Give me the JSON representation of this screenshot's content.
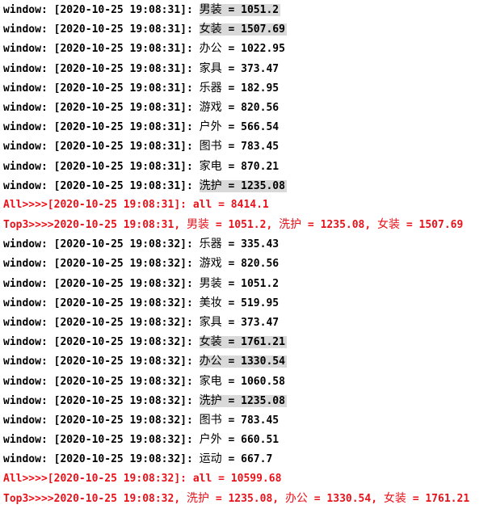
{
  "highlight_color": "#d9d9d9",
  "summary_color": "#e8121a",
  "lines": [
    {
      "type": "w",
      "ts": "2020-10-25 19:08:31",
      "cat": "男装",
      "val": "1051.2",
      "hl": true
    },
    {
      "type": "w",
      "ts": "2020-10-25 19:08:31",
      "cat": "女装",
      "val": "1507.69",
      "hl": true
    },
    {
      "type": "w",
      "ts": "2020-10-25 19:08:31",
      "cat": "办公",
      "val": "1022.95",
      "hl": false
    },
    {
      "type": "w",
      "ts": "2020-10-25 19:08:31",
      "cat": "家具",
      "val": "373.47",
      "hl": false
    },
    {
      "type": "w",
      "ts": "2020-10-25 19:08:31",
      "cat": "乐器",
      "val": "182.95",
      "hl": false
    },
    {
      "type": "w",
      "ts": "2020-10-25 19:08:31",
      "cat": "游戏",
      "val": "820.56",
      "hl": false
    },
    {
      "type": "w",
      "ts": "2020-10-25 19:08:31",
      "cat": "户外",
      "val": "566.54",
      "hl": false
    },
    {
      "type": "w",
      "ts": "2020-10-25 19:08:31",
      "cat": "图书",
      "val": "783.45",
      "hl": false
    },
    {
      "type": "w",
      "ts": "2020-10-25 19:08:31",
      "cat": "家电",
      "val": "870.21",
      "hl": false
    },
    {
      "type": "w",
      "ts": "2020-10-25 19:08:31",
      "cat": "洗护",
      "val": "1235.08",
      "hl": true
    },
    {
      "type": "all",
      "ts": "2020-10-25 19:08:31",
      "val": "8414.1"
    },
    {
      "type": "top",
      "ts": "2020-10-25 19:08:31",
      "items": [
        {
          "cat": "男装",
          "val": "1051.2"
        },
        {
          "cat": "洗护",
          "val": "1235.08"
        },
        {
          "cat": "女装",
          "val": "1507.69"
        }
      ]
    },
    {
      "type": "w",
      "ts": "2020-10-25 19:08:32",
      "cat": "乐器",
      "val": "335.43",
      "hl": false
    },
    {
      "type": "w",
      "ts": "2020-10-25 19:08:32",
      "cat": "游戏",
      "val": "820.56",
      "hl": false
    },
    {
      "type": "w",
      "ts": "2020-10-25 19:08:32",
      "cat": "男装",
      "val": "1051.2",
      "hl": false
    },
    {
      "type": "w",
      "ts": "2020-10-25 19:08:32",
      "cat": "美妆",
      "val": "519.95",
      "hl": false
    },
    {
      "type": "w",
      "ts": "2020-10-25 19:08:32",
      "cat": "家具",
      "val": "373.47",
      "hl": false
    },
    {
      "type": "w",
      "ts": "2020-10-25 19:08:32",
      "cat": "女装",
      "val": "1761.21",
      "hl": true
    },
    {
      "type": "w",
      "ts": "2020-10-25 19:08:32",
      "cat": "办公",
      "val": "1330.54",
      "hl": true
    },
    {
      "type": "w",
      "ts": "2020-10-25 19:08:32",
      "cat": "家电",
      "val": "1060.58",
      "hl": false
    },
    {
      "type": "w",
      "ts": "2020-10-25 19:08:32",
      "cat": "洗护",
      "val": "1235.08",
      "hl": true
    },
    {
      "type": "w",
      "ts": "2020-10-25 19:08:32",
      "cat": "图书",
      "val": "783.45",
      "hl": false
    },
    {
      "type": "w",
      "ts": "2020-10-25 19:08:32",
      "cat": "户外",
      "val": "660.51",
      "hl": false
    },
    {
      "type": "w",
      "ts": "2020-10-25 19:08:32",
      "cat": "运动",
      "val": "667.7",
      "hl": false
    },
    {
      "type": "all",
      "ts": "2020-10-25 19:08:32",
      "val": "10599.68"
    },
    {
      "type": "top",
      "ts": "2020-10-25 19:08:32",
      "items": [
        {
          "cat": "洗护",
          "val": "1235.08"
        },
        {
          "cat": "办公",
          "val": "1330.54"
        },
        {
          "cat": "女装",
          "val": "1761.21"
        }
      ]
    }
  ]
}
